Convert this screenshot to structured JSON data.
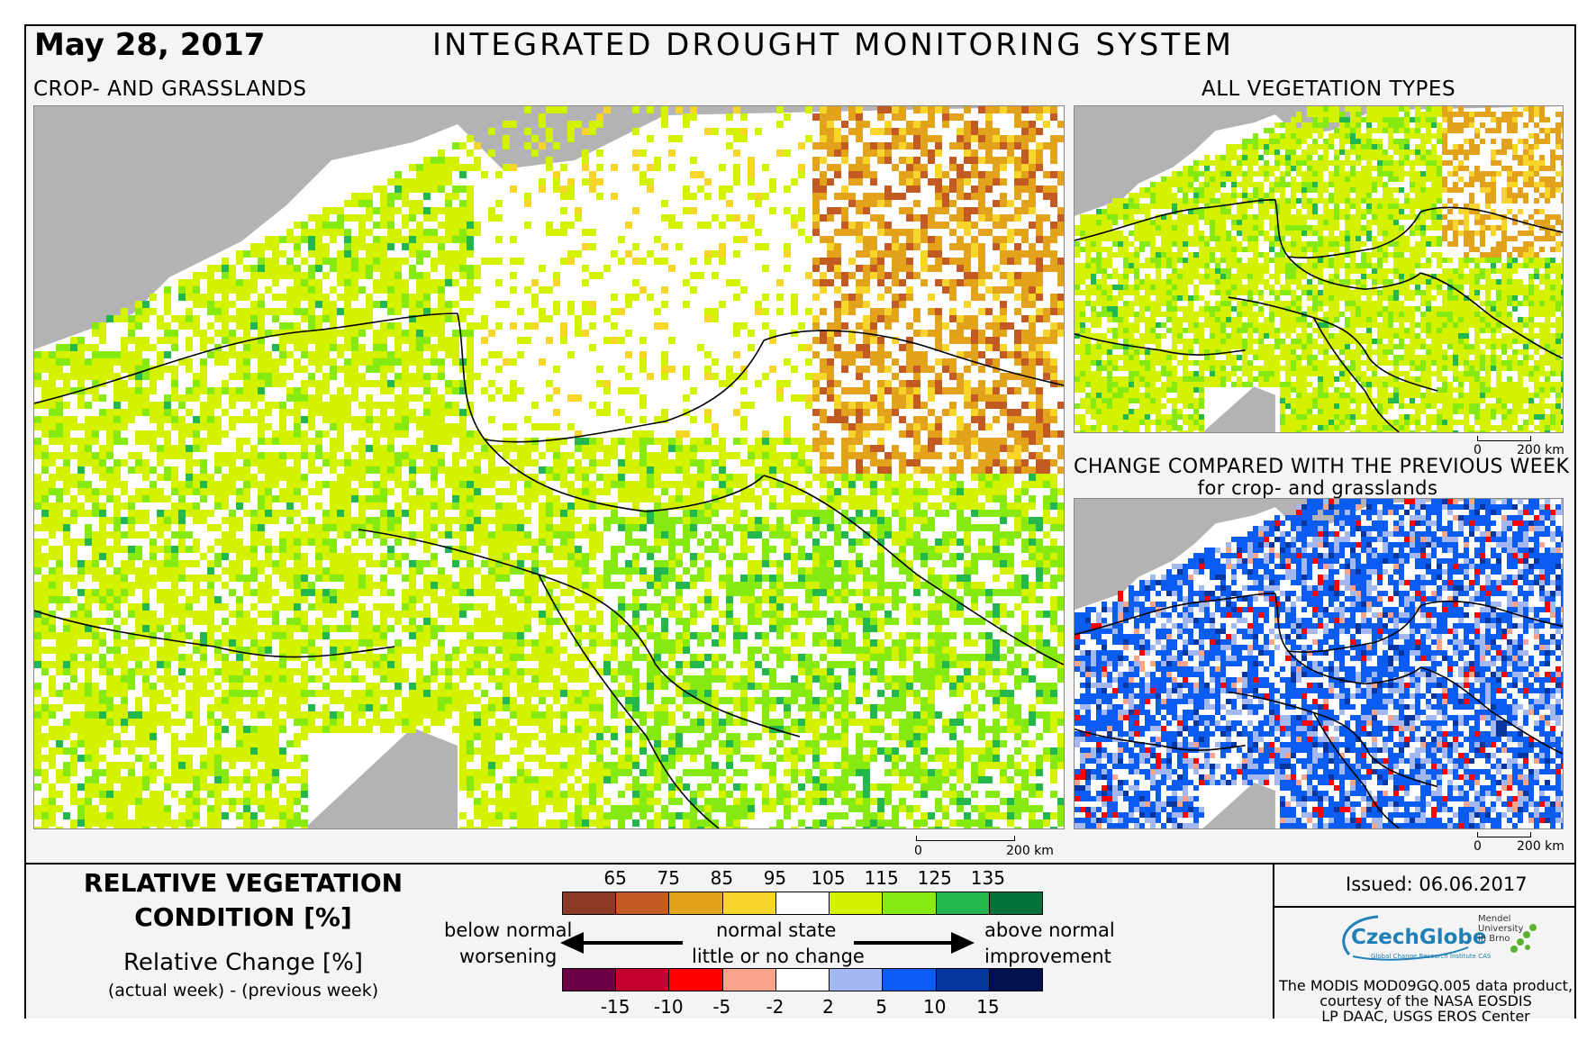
{
  "header": {
    "date": "May 28, 2017",
    "title": "INTEGRATED DROUGHT MONITORING SYSTEM"
  },
  "maps": {
    "main": {
      "subtitle": "CROP- AND GRASSLANDS",
      "scale_start": "0",
      "scale_end": "200 km"
    },
    "all_vegetation": {
      "subtitle": "ALL VEGETATION TYPES",
      "scale_start": "0",
      "scale_end": "200 km"
    },
    "change": {
      "subtitle": "CHANGE COMPARED WITH THE PREVIOUS WEEK",
      "subtitle2": "for crop- and grasslands",
      "scale_start": "0",
      "scale_end": "200 km"
    }
  },
  "legend": {
    "title_line1": "RELATIVE VEGETATION",
    "title_line2": "CONDITION [%]",
    "change_title": "Relative Change [%]",
    "change_sub": "(actual week) - (previous week)",
    "condition_ticks": [
      "65",
      "75",
      "85",
      "95",
      "105",
      "115",
      "125",
      "135"
    ],
    "condition_colors": [
      "#8b3a26",
      "#c35a22",
      "#e3a21c",
      "#f8d52b",
      "#ffffff",
      "#d4f200",
      "#86ea12",
      "#22b84d",
      "#067138"
    ],
    "change_ticks": [
      "-15",
      "-10",
      "-5",
      "-2",
      "2",
      "5",
      "10",
      "15"
    ],
    "change_colors": [
      "#6b0045",
      "#c4002e",
      "#ff0000",
      "#f8a48c",
      "#ffffff",
      "#a3b8f0",
      "#0a5cf2",
      "#07369e",
      "#03114e"
    ],
    "below_normal": "below normal",
    "worsening": "worsening",
    "normal_state": "normal state",
    "little_change": "little or no change",
    "above_normal": "above normal",
    "improvement": "improvement"
  },
  "info": {
    "issued": "Issued: 06.06.2017",
    "logo": "CzechGlobe",
    "logo_sub": "Global Change Research Institute CAS",
    "mendel": [
      "Mendel",
      "University",
      "in Brno"
    ],
    "credit": [
      "The MODIS MOD09GQ.005 data product,",
      "courtesy of the NASA EOSDIS",
      "LP DAAC, USGS EROS Center"
    ]
  },
  "colors": {
    "sea_gray": "#b3b3b3",
    "border": "#000000"
  }
}
